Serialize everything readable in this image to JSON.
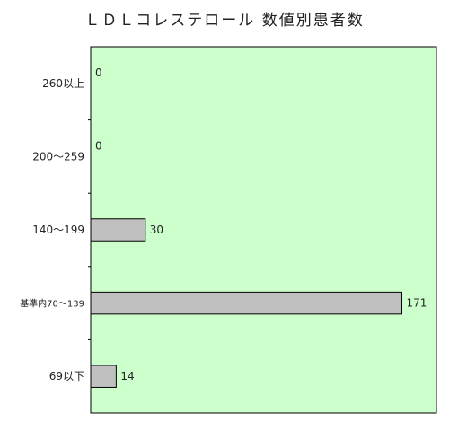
{
  "chart_data": {
    "type": "bar",
    "orientation": "horizontal",
    "title": "ＬＤＬコレステロール 数値別患者数",
    "categories": [
      "260以上",
      "200～259",
      "140～199",
      "基準内70～139",
      "69以下"
    ],
    "values": [
      0,
      0,
      30,
      171,
      14
    ],
    "data_labels": [
      "0",
      "0",
      "30",
      "171",
      "14"
    ],
    "xlabel": "",
    "ylabel": "",
    "xlim": [
      0,
      190
    ],
    "grid": false,
    "legend": "none",
    "colors": {
      "plot_background": "#ccffcc",
      "bar_fill": "#c0c0c0",
      "bar_stroke": "#000000",
      "axis": "#000000"
    }
  }
}
